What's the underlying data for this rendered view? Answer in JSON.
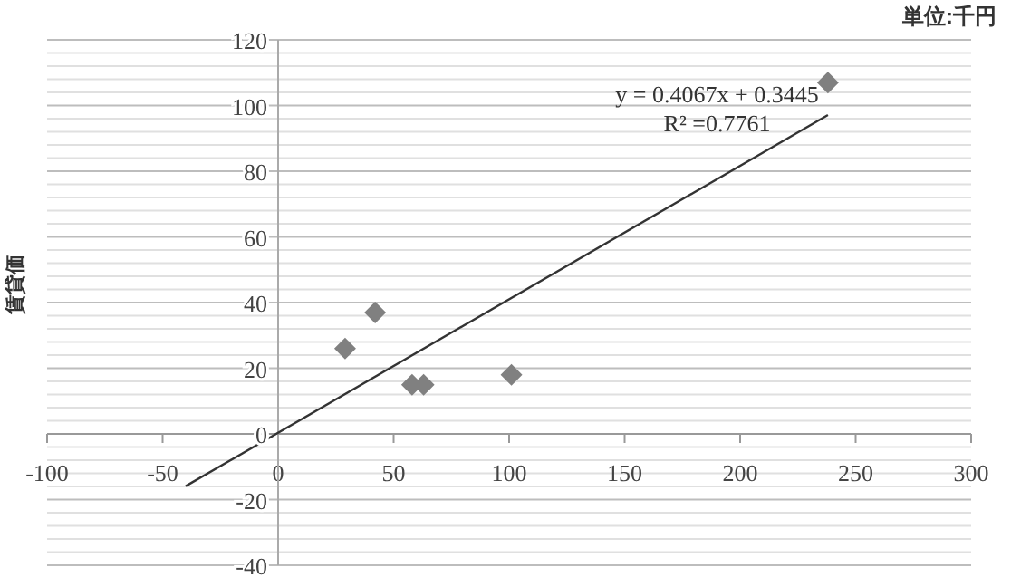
{
  "chart_data": {
    "type": "scatter",
    "ylabel": "賃貸価",
    "annotations": [
      "単位:千円",
      "y = 0.4067x + 0.3445",
      "R² =0.7761"
    ],
    "xlim": [
      -100,
      300
    ],
    "xticks": [
      -100,
      -50,
      0,
      50,
      100,
      150,
      200,
      250,
      300
    ],
    "ylim": [
      -40,
      120
    ],
    "yticks": [
      -40,
      {
        "value": -36,
        "label": null
      },
      {
        "value": -32,
        "label": null
      },
      {
        "value": -28,
        "label": null
      },
      {
        "value": -24,
        "label": null
      },
      -20,
      {
        "value": -16,
        "label": null
      },
      {
        "value": -12,
        "label": null
      },
      {
        "value": -8,
        "label": null
      },
      {
        "value": -4,
        "label": null
      },
      0,
      {
        "value": 4,
        "label": null
      },
      {
        "value": 8,
        "label": null
      },
      {
        "value": 12,
        "label": null
      },
      {
        "value": 16,
        "label": null
      },
      20,
      {
        "value": 24,
        "label": null
      },
      {
        "value": 28,
        "label": null
      },
      {
        "value": 32,
        "label": null
      },
      {
        "value": 36,
        "label": null
      },
      40,
      {
        "value": 44,
        "label": null
      },
      {
        "value": 48,
        "label": null
      },
      {
        "value": 52,
        "label": null
      },
      {
        "value": 56,
        "label": null
      },
      60,
      {
        "value": 64,
        "label": null
      },
      {
        "value": 68,
        "label": null
      },
      {
        "value": 72,
        "label": null
      },
      {
        "value": 76,
        "label": null
      },
      80,
      {
        "value": 84,
        "label": null
      },
      {
        "value": 88,
        "label": null
      },
      {
        "value": 92,
        "label": null
      },
      {
        "value": 96,
        "label": null
      },
      100,
      {
        "value": 104,
        "label": null
      },
      {
        "value": 108,
        "label": null
      },
      {
        "value": 112,
        "label": null
      },
      {
        "value": 116,
        "label": null
      },
      120
    ],
    "grid": "y",
    "marker": "diamond",
    "series": [
      {
        "color": "#808080",
        "x": [
          29,
          42,
          58,
          63,
          101,
          238
        ],
        "values": [
          26,
          37,
          15,
          15,
          18,
          107
        ]
      },
      {
        "type": "line",
        "color": "#333333",
        "marker": "none",
        "x": [
          -40,
          238
        ],
        "values": [
          -15.9,
          97.1
        ]
      }
    ]
  }
}
